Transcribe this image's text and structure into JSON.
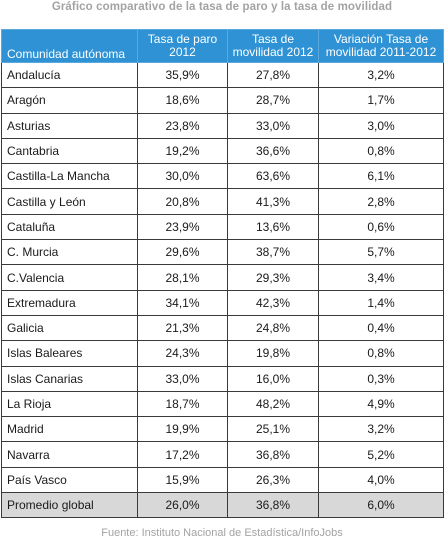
{
  "title": "Gráfico comparativo de la tasa de paro y la tasa de movilidad",
  "columns": [
    "Comunidad autónoma",
    "Tasa de paro 2012",
    "Tasa de movilidad 2012",
    "Variación Tasa de movilidad 2011-2012"
  ],
  "rows": [
    [
      "Andalucía",
      "35,9%",
      "27,8%",
      "3,2%"
    ],
    [
      "Aragón",
      "18,6%",
      "28,7%",
      "1,7%"
    ],
    [
      "Asturias",
      "23,8%",
      "33,0%",
      "3,0%"
    ],
    [
      "Cantabria",
      "19,2%",
      "36,6%",
      "0,8%"
    ],
    [
      "Castilla-La Mancha",
      "30,0%",
      "63,6%",
      "6,1%"
    ],
    [
      "Castilla y León",
      "20,8%",
      "41,3%",
      "2,8%"
    ],
    [
      "Cataluña",
      "23,9%",
      "13,6%",
      "0,6%"
    ],
    [
      "C. Murcia",
      "29,6%",
      "38,7%",
      "5,7%"
    ],
    [
      "C.Valencia",
      "28,1%",
      "29,3%",
      "3,4%"
    ],
    [
      "Extremadura",
      "34,1%",
      "42,3%",
      "1,4%"
    ],
    [
      "Galicia",
      "21,3%",
      "24,8%",
      "0,4%"
    ],
    [
      "Islas Baleares",
      "24,3%",
      "19,8%",
      "0,8%"
    ],
    [
      "Islas Canarias",
      "33,0%",
      "16,0%",
      "0,3%"
    ],
    [
      "La Rioja",
      "18,7%",
      "48,2%",
      "4,9%"
    ],
    [
      "Madrid",
      "19,9%",
      "25,1%",
      "3,2%"
    ],
    [
      "Navarra",
      "17,2%",
      "36,8%",
      "5,2%"
    ],
    [
      "País Vasco",
      "15,9%",
      "26,3%",
      "4,0%"
    ]
  ],
  "average_row": [
    "Promedio global",
    "26,0%",
    "36,8%",
    "6,0%"
  ],
  "footer": "Fuente: Instituto Nacional de Estadística/InfoJobs",
  "colors": {
    "header_bg": "#2e92d4",
    "header_text": "#ffffff",
    "average_bg": "#d8d8d8",
    "muted_text": "#a3a3a3"
  }
}
